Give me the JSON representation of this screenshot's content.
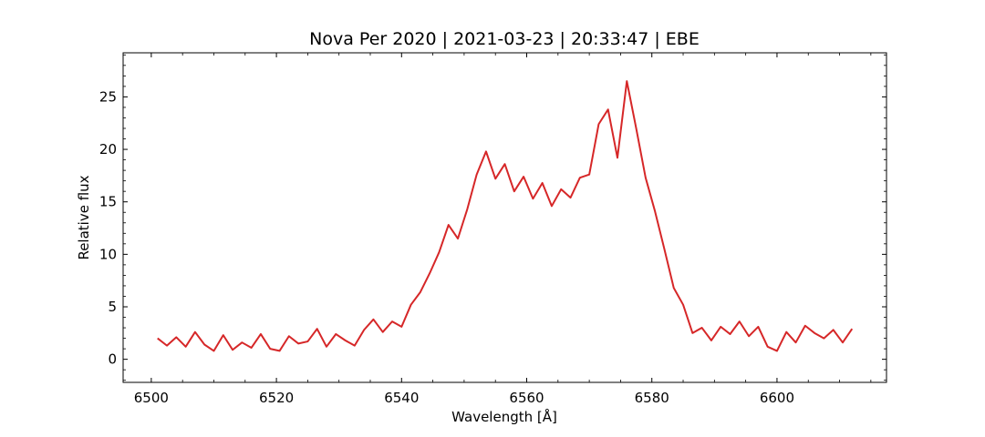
{
  "chart_data": {
    "type": "line",
    "title": "Nova Per 2020 | 2021-03-23 | 20:33:47 | EBE",
    "xlabel": "Wavelength [Å]",
    "ylabel": "Relative flux",
    "xlim": [
      6495.5,
      6617.5
    ],
    "ylim": [
      -2.2,
      29.2
    ],
    "xticks": [
      6500,
      6520,
      6540,
      6560,
      6580,
      6600
    ],
    "yticks": [
      0,
      5,
      10,
      15,
      20,
      25
    ],
    "grid": false,
    "legend": "none",
    "colors": {
      "line": "#d62728",
      "axes": "#000000",
      "background": "#ffffff"
    },
    "series": [
      {
        "x": [
          6501.0,
          6502.5,
          6504.0,
          6505.5,
          6507.0,
          6508.5,
          6510.0,
          6511.5,
          6513.0,
          6514.5,
          6516.0,
          6517.5,
          6519.0,
          6520.5,
          6522.0,
          6523.5,
          6525.0,
          6526.5,
          6528.0,
          6529.5,
          6531.0,
          6532.5,
          6534.0,
          6535.5,
          6537.0,
          6538.5,
          6540.0,
          6541.5,
          6543.0,
          6544.5,
          6546.0,
          6547.5,
          6549.0,
          6550.5,
          6552.0,
          6553.5,
          6555.0,
          6556.5,
          6558.0,
          6559.5,
          6561.0,
          6562.5,
          6564.0,
          6565.5,
          6567.0,
          6568.5,
          6570.0,
          6571.5,
          6573.0,
          6574.5,
          6576.0,
          6577.5,
          6579.0,
          6580.5,
          6582.0,
          6583.5,
          6585.0,
          6586.5,
          6588.0,
          6589.5,
          6591.0,
          6592.5,
          6594.0,
          6595.5,
          6597.0,
          6598.5,
          6600.0,
          6601.5,
          6603.0,
          6604.5,
          6606.0,
          6607.5,
          6609.0,
          6610.5,
          6612.0
        ],
        "y": [
          2.0,
          1.3,
          2.1,
          1.2,
          2.6,
          1.4,
          0.8,
          2.3,
          0.9,
          1.6,
          1.1,
          2.4,
          1.0,
          0.8,
          2.2,
          1.5,
          1.7,
          2.9,
          1.2,
          2.4,
          1.8,
          1.3,
          2.8,
          3.8,
          2.6,
          3.6,
          3.1,
          5.2,
          6.4,
          8.2,
          10.2,
          12.8,
          11.5,
          14.3,
          17.6,
          19.8,
          17.2,
          18.6,
          16.0,
          17.4,
          15.3,
          16.8,
          14.6,
          16.2,
          15.4,
          17.3,
          17.6,
          22.4,
          23.8,
          19.2,
          26.5,
          22.0,
          17.3,
          14.1,
          10.5,
          6.8,
          5.2,
          2.5,
          3.0,
          1.8,
          3.1,
          2.4,
          3.6,
          2.2,
          3.1,
          1.2,
          0.8,
          2.6,
          1.6,
          3.2,
          2.5,
          2.0,
          2.8,
          1.6,
          2.9
        ]
      }
    ]
  }
}
